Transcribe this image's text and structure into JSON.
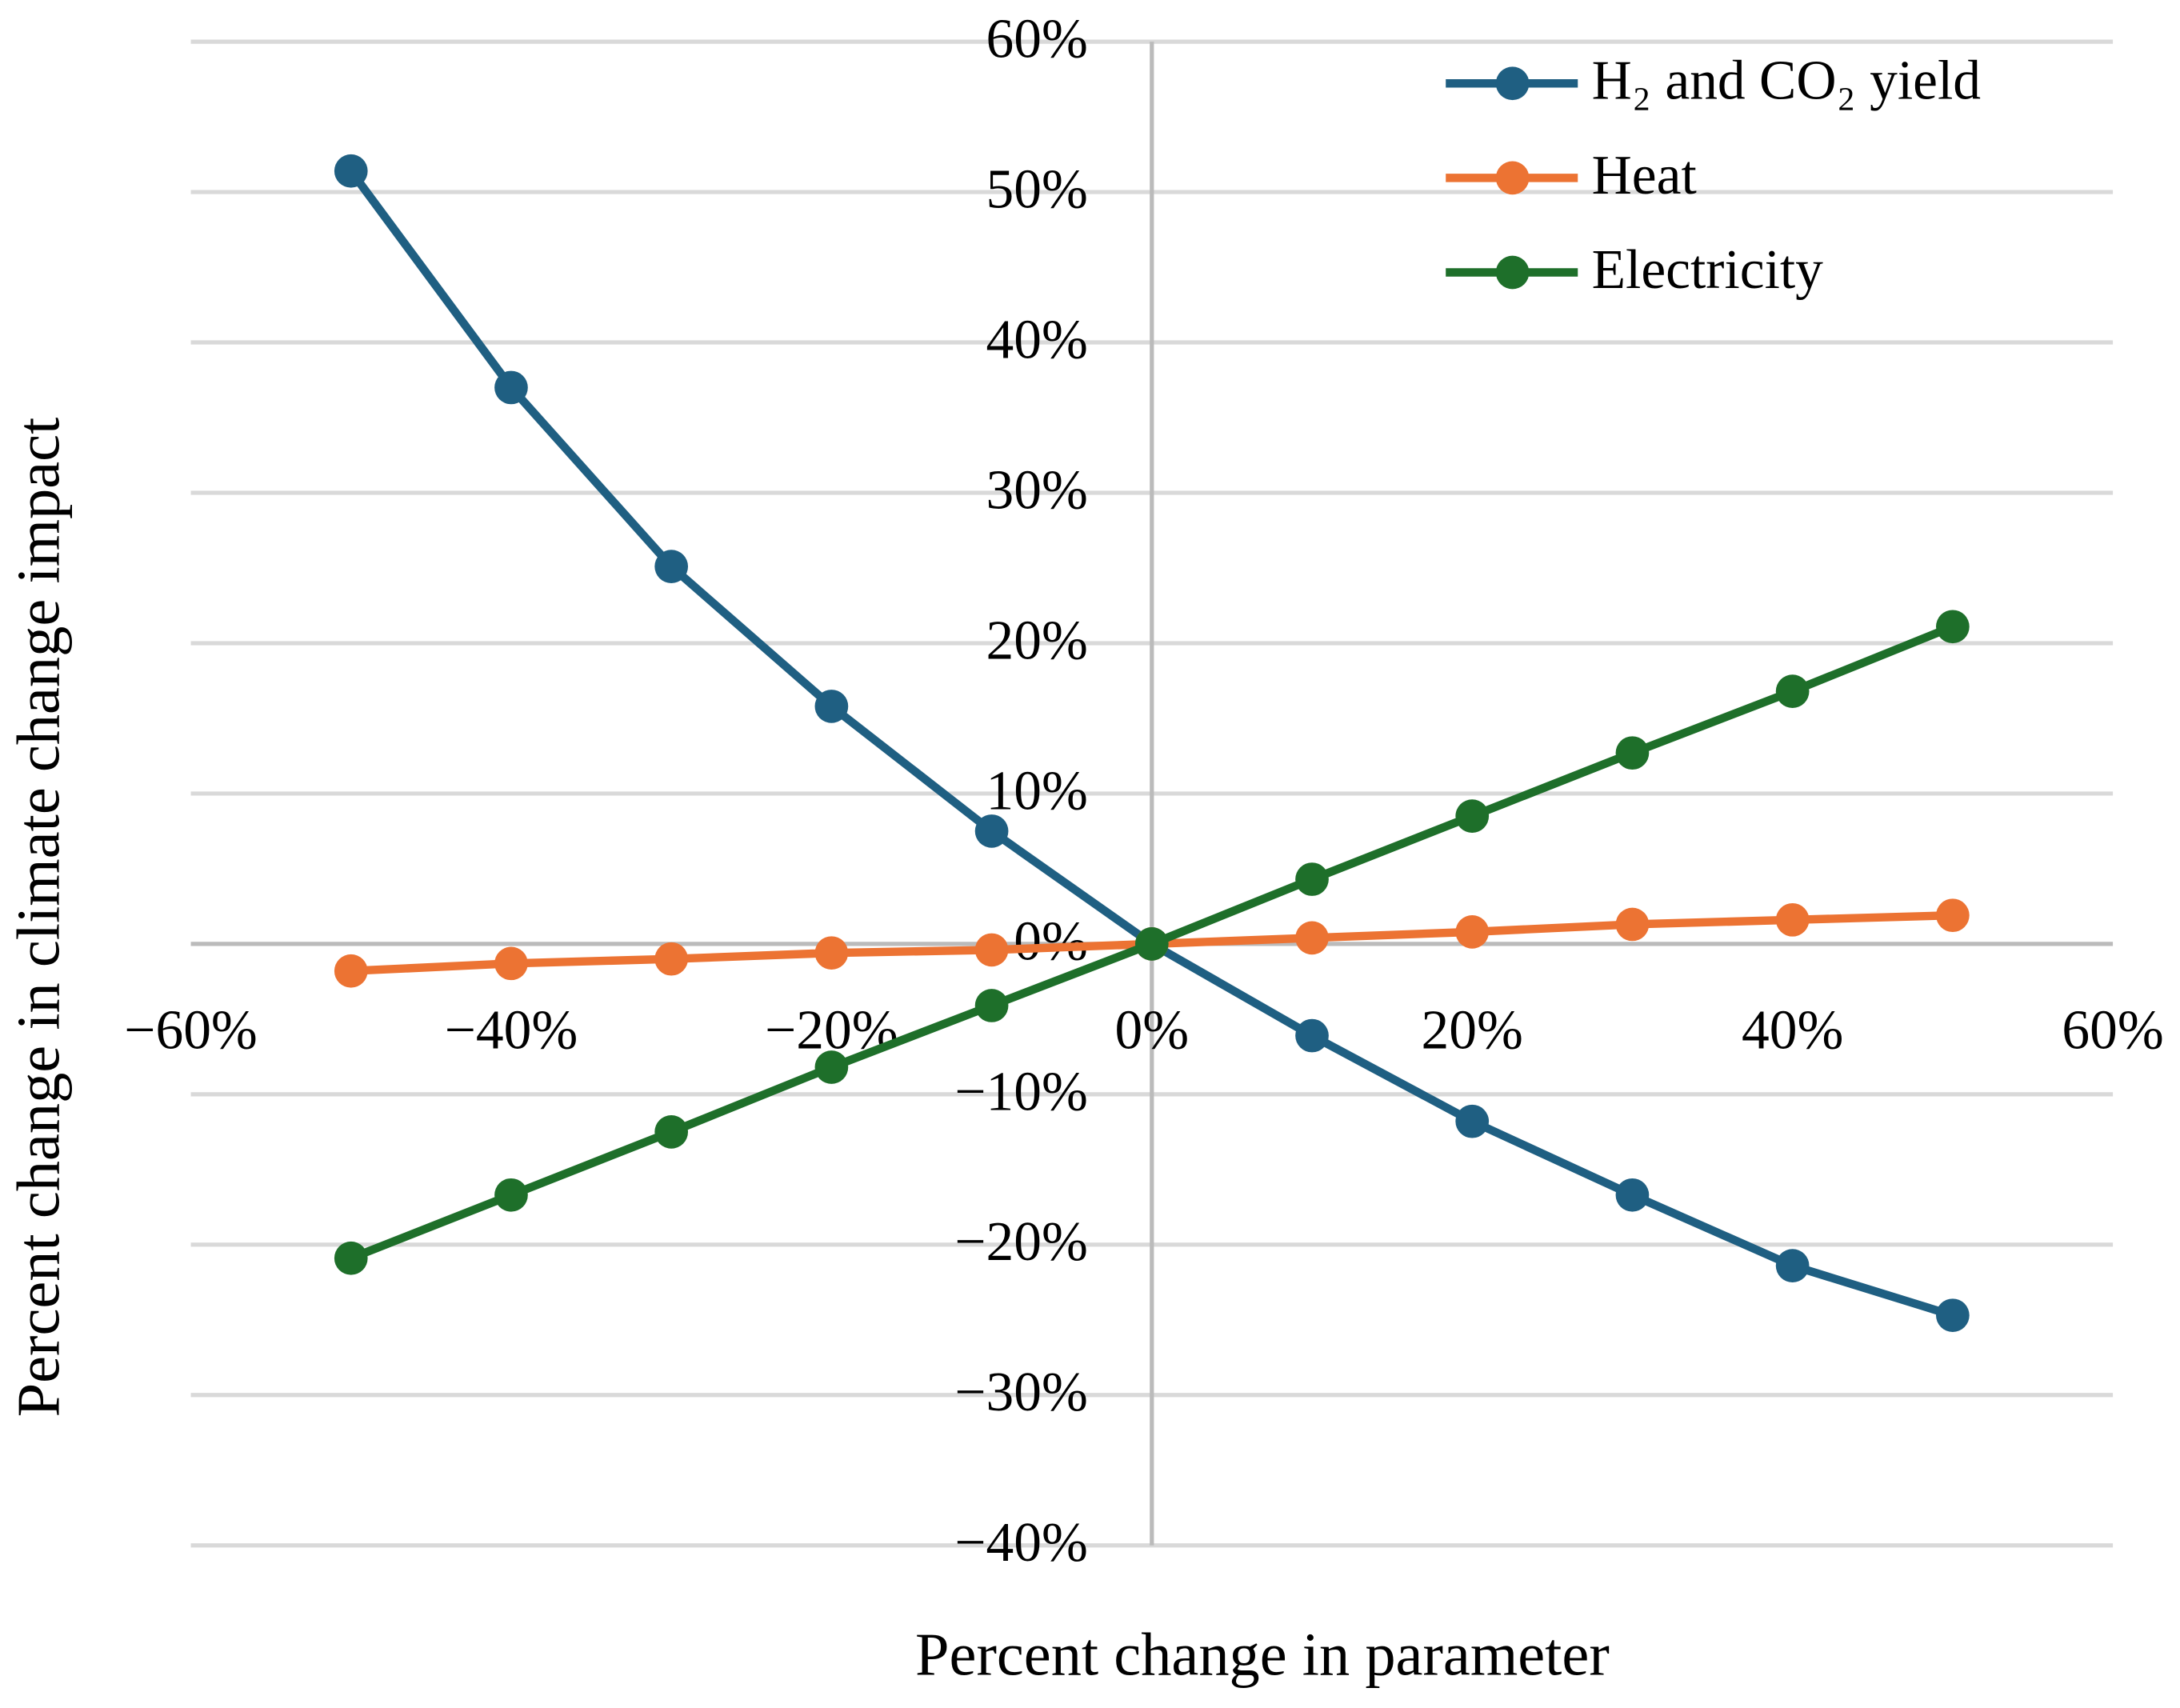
{
  "chart_data": {
    "type": "line",
    "x_label": "Percent change in parameter",
    "y_label": "Percent change in climate change impact",
    "x": [
      -50,
      -40,
      -30,
      -20,
      -10,
      0,
      10,
      20,
      30,
      40,
      50
    ],
    "series": [
      {
        "name": "H₂ and CO₂ yield",
        "color": "#1f5f82",
        "values": [
          51.4,
          37,
          25.1,
          15.8,
          7.5,
          0,
          -6.1,
          -11.8,
          -16.7,
          -21.4,
          -24.7
        ]
      },
      {
        "name": "Heat",
        "color": "#ec7333",
        "values": [
          -1.8,
          -1.3,
          -1.0,
          -0.6,
          -0.4,
          0,
          0.4,
          0.8,
          1.3,
          1.6,
          1.9
        ]
      },
      {
        "name": "Electricity",
        "color": "#1e6f2a",
        "values": [
          -20.9,
          -16.7,
          -12.5,
          -8.2,
          -4.1,
          0,
          4.3,
          8.5,
          12.7,
          16.8,
          21.1
        ]
      }
    ],
    "xlim": [
      -60,
      60
    ],
    "ylim": [
      -40,
      60
    ],
    "xticks": [
      {
        "value": -60,
        "label": "−60%"
      },
      {
        "value": -40,
        "label": "−40%"
      },
      {
        "value": -20,
        "label": "−20%"
      },
      {
        "value": 0,
        "label": "0%"
      },
      {
        "value": 20,
        "label": "20%"
      },
      {
        "value": 40,
        "label": "40%"
      },
      {
        "value": 60,
        "label": "60%"
      }
    ],
    "yticks": [
      {
        "value": -40,
        "label": "−40%"
      },
      {
        "value": -30,
        "label": "−30%"
      },
      {
        "value": -20,
        "label": "−20%"
      },
      {
        "value": -10,
        "label": "−10%"
      },
      {
        "value": 0,
        "label": "0%"
      },
      {
        "value": 10,
        "label": "10%"
      },
      {
        "value": 20,
        "label": "20%"
      },
      {
        "value": 30,
        "label": "30%"
      },
      {
        "value": 40,
        "label": "40%"
      },
      {
        "value": 50,
        "label": "50%"
      },
      {
        "value": 60,
        "label": "60%"
      }
    ],
    "grid": true,
    "legend_position": "upper right"
  }
}
